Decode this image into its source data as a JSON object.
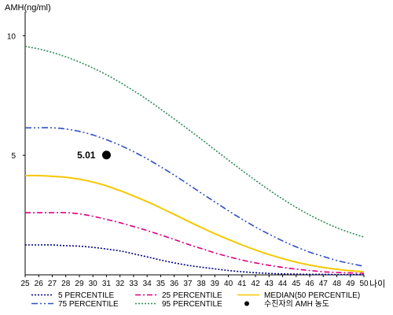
{
  "chart_data": {
    "type": "line",
    "ylabel": "AMH(ng/ml)",
    "xlabel": "나이",
    "xlim": [
      25,
      50
    ],
    "ylim": [
      0,
      11
    ],
    "x_ticks": [
      25,
      26,
      27,
      28,
      29,
      30,
      31,
      32,
      33,
      34,
      35,
      36,
      37,
      38,
      39,
      40,
      41,
      42,
      43,
      44,
      45,
      46,
      47,
      48,
      49,
      50
    ],
    "y_ticks": [
      5,
      10
    ],
    "grid": false,
    "legend_position": "bottom",
    "x": [
      25,
      26,
      27,
      28,
      29,
      30,
      31,
      32,
      33,
      34,
      35,
      36,
      37,
      38,
      39,
      40,
      41,
      42,
      43,
      44,
      45,
      46,
      47,
      48,
      49,
      50
    ],
    "series": [
      {
        "name": "5 PERCENTILE",
        "color": "#000080",
        "dash": "2,2",
        "values": [
          1.25,
          1.25,
          1.25,
          1.22,
          1.2,
          1.15,
          1.08,
          1.0,
          0.88,
          0.75,
          0.62,
          0.5,
          0.4,
          0.32,
          0.25,
          0.18,
          0.13,
          0.09,
          0.06,
          0.04,
          0.03,
          0.02,
          0.02,
          0.01,
          0.01,
          0.0
        ]
      },
      {
        "name": "25 PERCENTILE",
        "color": "#e0007f",
        "dash": "7,3,2,3",
        "values": [
          2.6,
          2.6,
          2.6,
          2.6,
          2.55,
          2.45,
          2.32,
          2.18,
          2.02,
          1.85,
          1.67,
          1.48,
          1.28,
          1.1,
          0.92,
          0.76,
          0.62,
          0.5,
          0.4,
          0.31,
          0.24,
          0.18,
          0.13,
          0.1,
          0.08,
          0.06
        ]
      },
      {
        "name": "MEDIAN(50 PERCENTILE)",
        "color": "#f5c800",
        "dash": "",
        "values": [
          4.15,
          4.15,
          4.12,
          4.08,
          4.0,
          3.88,
          3.72,
          3.52,
          3.3,
          3.06,
          2.8,
          2.53,
          2.25,
          1.98,
          1.72,
          1.48,
          1.25,
          1.04,
          0.85,
          0.68,
          0.53,
          0.41,
          0.31,
          0.23,
          0.17,
          0.13
        ]
      },
      {
        "name": "75 PERCENTILE",
        "color": "#3050c0",
        "dash": "8,3,2,3,2,3",
        "values": [
          6.15,
          6.15,
          6.15,
          6.1,
          6.0,
          5.85,
          5.65,
          5.42,
          5.15,
          4.85,
          4.52,
          4.17,
          3.8,
          3.42,
          3.05,
          2.68,
          2.33,
          2.0,
          1.7,
          1.42,
          1.17,
          0.95,
          0.77,
          0.6,
          0.47,
          0.36
        ]
      },
      {
        "name": "95 PERCENTILE",
        "color": "#2e8b57",
        "dash": "2,2",
        "values": [
          9.55,
          9.45,
          9.3,
          9.12,
          8.9,
          8.65,
          8.37,
          8.05,
          7.7,
          7.33,
          6.93,
          6.52,
          6.1,
          5.67,
          5.23,
          4.8,
          4.37,
          3.95,
          3.55,
          3.17,
          2.82,
          2.5,
          2.22,
          1.97,
          1.76,
          1.58
        ]
      }
    ],
    "point": {
      "name": "수진자의 AMH 농도",
      "x": 31,
      "y": 5.01,
      "label": "5.01",
      "color": "#000000"
    }
  },
  "legend": {
    "items": [
      {
        "label": "5 PERCENTILE",
        "series": 0
      },
      {
        "label": "25 PERCENTILE",
        "series": 1
      },
      {
        "label": "MEDIAN(50 PERCENTILE)",
        "series": 2
      },
      {
        "label": "75 PERCENTILE",
        "series": 3
      },
      {
        "label": "95 PERCENTILE",
        "series": 4
      },
      {
        "label": "수진자의 AMH 농도",
        "series": "point"
      }
    ]
  }
}
